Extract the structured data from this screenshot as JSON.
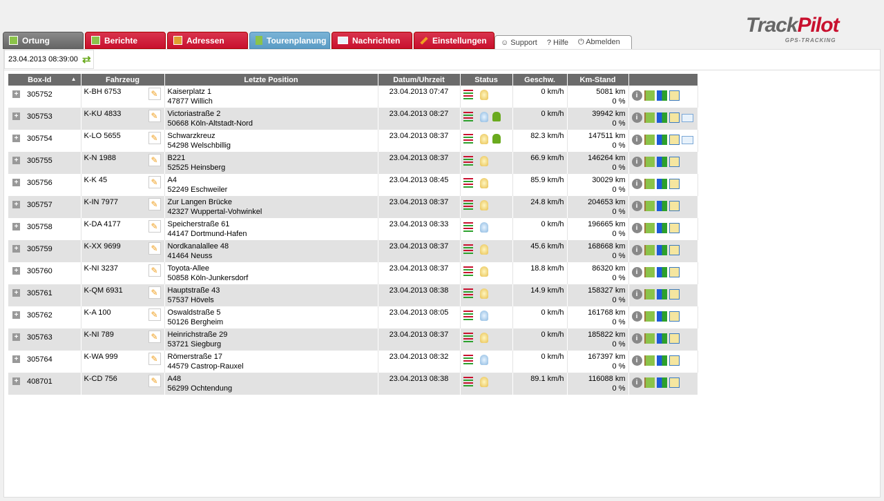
{
  "nav": {
    "tabs": [
      {
        "label": "Ortung",
        "active": true
      },
      {
        "label": "Berichte"
      },
      {
        "label": "Adressen"
      },
      {
        "label": "Tourenplanung",
        "color": "#5a9cc5"
      },
      {
        "label": "Nachrichten"
      },
      {
        "label": "Einstellungen"
      }
    ],
    "links": [
      "Support",
      "Hilfe",
      "Abmelden"
    ]
  },
  "logo": {
    "text1": "Track",
    "text2": "Pilot",
    "sub": "GPS-TRACKING"
  },
  "timestamp": "23.04.2013 08:39:00",
  "colors": {
    "accent": "#c8102e",
    "header": "#6b6b6b",
    "green": "#6aaa1e"
  },
  "table": {
    "columns": [
      "Box-Id",
      "Fahrzeug",
      "Letzte Position",
      "Datum/Uhrzeit",
      "Status",
      "Geschw.",
      "Km-Stand",
      ""
    ],
    "sort": {
      "column": "Box-Id",
      "direction": "ascending"
    },
    "rows": [
      {
        "id": "305752",
        "vehicle": "K-BH 6753",
        "street": "Kaiserplatz 1",
        "city": "47877 Willich",
        "date": "23.04.2013 07:47",
        "bulb": "yellow",
        "driver": false,
        "speed": "0 km/h",
        "km": "5081 km",
        "pct": "0 %",
        "mail": false
      },
      {
        "id": "305753",
        "vehicle": "K-KU 4833",
        "street": "Victoriastraße 2",
        "city": "50668 Köln-Altstadt-Nord",
        "date": "23.04.2013 08:27",
        "bulb": "blue",
        "driver": true,
        "speed": "0 km/h",
        "km": "39942 km",
        "pct": "0 %",
        "mail": true
      },
      {
        "id": "305754",
        "vehicle": "K-LO 5655",
        "street": "Schwarzkreuz",
        "city": "54298 Welschbillig",
        "date": "23.04.2013 08:37",
        "bulb": "yellow",
        "driver": true,
        "speed": "82.3 km/h",
        "km": "147511 km",
        "pct": "0 %",
        "mail": true
      },
      {
        "id": "305755",
        "vehicle": "K-N 1988",
        "street": "B221",
        "city": "52525 Heinsberg",
        "date": "23.04.2013 08:37",
        "bulb": "yellow",
        "driver": false,
        "speed": "66.9 km/h",
        "km": "146264 km",
        "pct": "0 %",
        "mail": false
      },
      {
        "id": "305756",
        "vehicle": "K-K 45",
        "street": "A4",
        "city": "52249 Eschweiler",
        "date": "23.04.2013 08:45",
        "bulb": "yellow",
        "driver": false,
        "speed": "85.9 km/h",
        "km": "30029 km",
        "pct": "0 %",
        "mail": false
      },
      {
        "id": "305757",
        "vehicle": "K-IN 7977",
        "street": "Zur Langen Brücke",
        "city": "42327 Wuppertal-Vohwinkel",
        "date": "23.04.2013 08:37",
        "bulb": "yellow",
        "driver": false,
        "speed": "24.8 km/h",
        "km": "204653 km",
        "pct": "0 %",
        "mail": false
      },
      {
        "id": "305758",
        "vehicle": "K-DA 4177",
        "street": "Speicherstraße 61",
        "city": "44147 Dortmund-Hafen",
        "date": "23.04.2013 08:33",
        "bulb": "blue",
        "driver": false,
        "speed": "0 km/h",
        "km": "196665 km",
        "pct": "0 %",
        "mail": false
      },
      {
        "id": "305759",
        "vehicle": "K-XX 9699",
        "street": "Nordkanalallee 48",
        "city": "41464 Neuss",
        "date": "23.04.2013 08:37",
        "bulb": "yellow",
        "driver": false,
        "speed": "45.6 km/h",
        "km": "168668 km",
        "pct": "0 %",
        "mail": false
      },
      {
        "id": "305760",
        "vehicle": "K-NI 3237",
        "street": "Toyota-Allee",
        "city": "50858 Köln-Junkersdorf",
        "date": "23.04.2013 08:37",
        "bulb": "yellow",
        "driver": false,
        "speed": "18.8 km/h",
        "km": "86320 km",
        "pct": "0 %",
        "mail": false
      },
      {
        "id": "305761",
        "vehicle": "K-QM 6931",
        "street": "Hauptstraße 43",
        "city": "57537 Hövels",
        "date": "23.04.2013 08:38",
        "bulb": "yellow",
        "driver": false,
        "speed": "14.9 km/h",
        "km": "158327 km",
        "pct": "0 %",
        "mail": false
      },
      {
        "id": "305762",
        "vehicle": "K-A 100",
        "street": "Oswaldstraße 5",
        "city": "50126 Bergheim",
        "date": "23.04.2013 08:05",
        "bulb": "blue",
        "driver": false,
        "speed": "0 km/h",
        "km": "161768 km",
        "pct": "0 %",
        "mail": false
      },
      {
        "id": "305763",
        "vehicle": "K-NI 789",
        "street": "Heinrichstraße 29",
        "city": "53721 Siegburg",
        "date": "23.04.2013 08:37",
        "bulb": "yellow",
        "driver": false,
        "speed": "0 km/h",
        "km": "185822 km",
        "pct": "0 %",
        "mail": false
      },
      {
        "id": "305764",
        "vehicle": "K-WA 999",
        "street": "Römerstraße 17",
        "city": "44579 Castrop-Rauxel",
        "date": "23.04.2013 08:32",
        "bulb": "blue",
        "driver": false,
        "speed": "0 km/h",
        "km": "167397 km",
        "pct": "0 %",
        "mail": false
      },
      {
        "id": "408701",
        "vehicle": "K-CD 756",
        "street": "A48",
        "city": "56299 Ochtendung",
        "date": "23.04.2013 08:38",
        "bulb": "yellow",
        "driver": false,
        "speed": "89.1 km/h",
        "km": "116088 km",
        "pct": "0 %",
        "mail": false
      }
    ]
  }
}
